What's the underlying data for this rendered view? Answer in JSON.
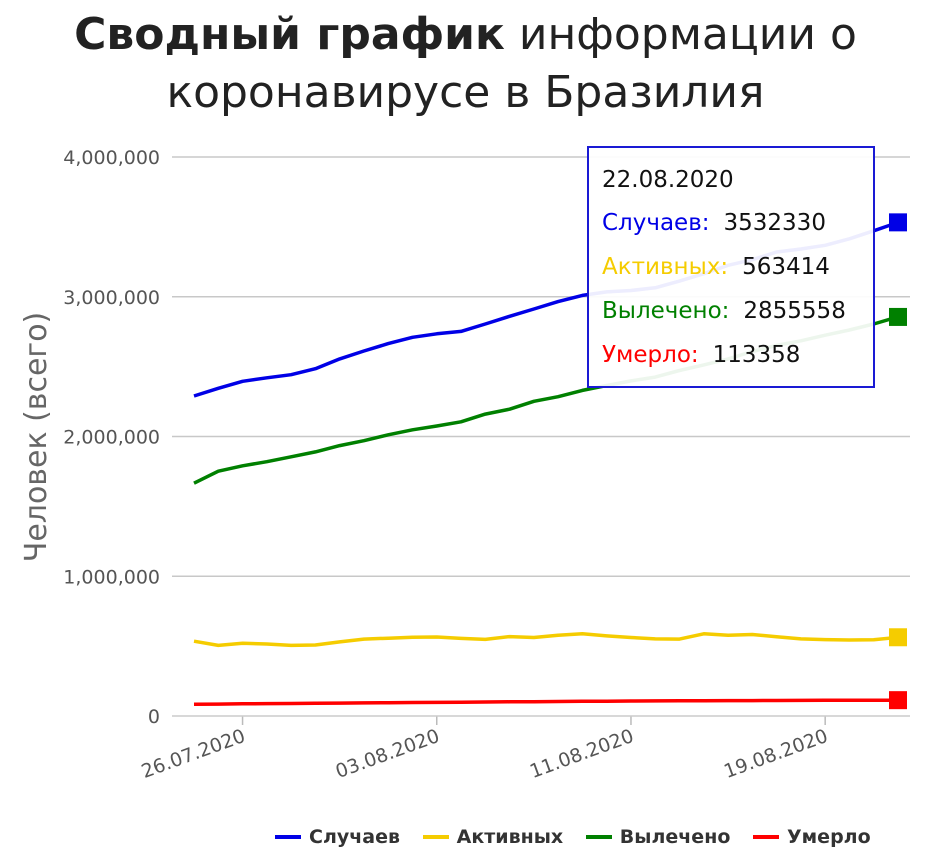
{
  "title": {
    "bold": "Сводный график",
    "rest": "информации о коронавирусе в Бразилия"
  },
  "chart_data": {
    "type": "line",
    "ylabel": "Человек (всего)",
    "y_ticks": [
      "0",
      "1,000,000",
      "2,000,000",
      "3,000,000",
      "4,000,000"
    ],
    "y_tick_values": [
      0,
      1000000,
      2000000,
      3000000,
      4000000
    ],
    "ylim": [
      0,
      4000000
    ],
    "x_ticks": [
      "26.07.2020",
      "03.08.2020",
      "11.08.2020",
      "19.08.2020"
    ],
    "x_tick_indices": [
      2,
      10,
      18,
      26
    ],
    "x": [
      "24.07.2020",
      "25.07.2020",
      "26.07.2020",
      "27.07.2020",
      "28.07.2020",
      "29.07.2020",
      "30.07.2020",
      "31.07.2020",
      "01.08.2020",
      "02.08.2020",
      "03.08.2020",
      "04.08.2020",
      "05.08.2020",
      "06.08.2020",
      "07.08.2020",
      "08.08.2020",
      "09.08.2020",
      "10.08.2020",
      "11.08.2020",
      "12.08.2020",
      "13.08.2020",
      "14.08.2020",
      "15.08.2020",
      "16.08.2020",
      "17.08.2020",
      "18.08.2020",
      "19.08.2020",
      "20.08.2020",
      "21.08.2020",
      "22.08.2020"
    ],
    "grid": true,
    "legend_position": "bottom-right",
    "series": [
      {
        "name": "Случаев",
        "color": "#0000e6",
        "values": [
          2290000,
          2345000,
          2395000,
          2420000,
          2442000,
          2485000,
          2555000,
          2612000,
          2665000,
          2710000,
          2735000,
          2752000,
          2805000,
          2860000,
          2912000,
          2965000,
          3010000,
          3035000,
          3045000,
          3064000,
          3112000,
          3165000,
          3225000,
          3265000,
          3320000,
          3342000,
          3368000,
          3415000,
          3472000,
          3532330
        ]
      },
      {
        "name": "Активных",
        "color": "#f5cc00",
        "values": [
          535000,
          505000,
          520000,
          515000,
          505000,
          508000,
          530000,
          550000,
          557000,
          563000,
          565000,
          555000,
          548000,
          568000,
          562000,
          578000,
          588000,
          573000,
          562000,
          552000,
          550000,
          588000,
          578000,
          583000,
          567000,
          552000,
          547000,
          544000,
          545000,
          563414
        ]
      },
      {
        "name": "Вылечено",
        "color": "#008000",
        "values": [
          1666000,
          1752000,
          1790000,
          1820000,
          1855000,
          1890000,
          1935000,
          1970000,
          2012000,
          2048000,
          2075000,
          2105000,
          2160000,
          2195000,
          2252000,
          2285000,
          2330000,
          2365000,
          2398000,
          2425000,
          2472000,
          2512000,
          2555000,
          2608000,
          2652000,
          2685000,
          2725000,
          2762000,
          2805000,
          2855558
        ]
      },
      {
        "name": "Умерло",
        "color": "#ff0000",
        "values": [
          84000,
          85500,
          87000,
          88500,
          89500,
          91000,
          92500,
          93500,
          95000,
          96500,
          97500,
          99000,
          100000,
          101500,
          102500,
          104000,
          105000,
          106000,
          107000,
          108000,
          108500,
          109500,
          110000,
          110500,
          111000,
          111500,
          112000,
          112500,
          113000,
          113358
        ]
      }
    ]
  },
  "tooltip": {
    "date": "22.08.2020",
    "rows": [
      {
        "label": "Случаев:",
        "value": "3532330",
        "color": "#0000e6"
      },
      {
        "label": "Активных:",
        "value": "563414",
        "color": "#f5cc00"
      },
      {
        "label": "Вылечено:",
        "value": "2855558",
        "color": "#008000"
      },
      {
        "label": "Умерло:",
        "value": "113358",
        "color": "#ff0000"
      }
    ]
  },
  "legend": [
    {
      "label": "Случаев",
      "color": "#0000e6"
    },
    {
      "label": "Активных",
      "color": "#f5cc00"
    },
    {
      "label": "Вылечено",
      "color": "#008000"
    },
    {
      "label": "Умерло",
      "color": "#ff0000"
    }
  ]
}
